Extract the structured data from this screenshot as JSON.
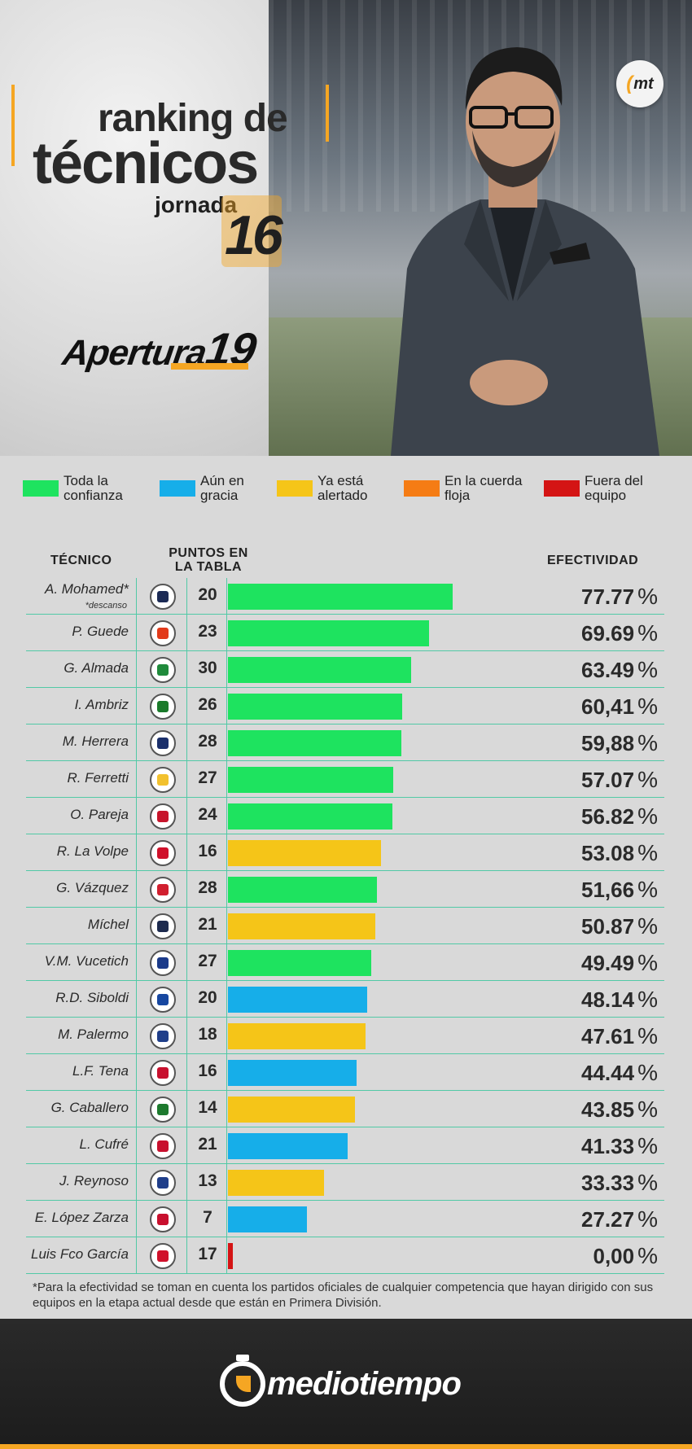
{
  "header": {
    "title_line1": "ranking de",
    "title_line2": "técnicos",
    "jornada_label": "jornada",
    "jornada_number": "16",
    "tournament_word": "Apertura",
    "tournament_year": "19",
    "logo_text": "mt"
  },
  "legend": [
    {
      "label": "Toda la confianza",
      "color": "#1ee35f"
    },
    {
      "label": "Aún en gracia",
      "color": "#16aee9"
    },
    {
      "label": "Ya está alertado",
      "color": "#f5c518"
    },
    {
      "label": "En la cuerda floja",
      "color": "#f57c14"
    },
    {
      "label": "Fuera del equipo",
      "color": "#d41414"
    }
  ],
  "columns": {
    "tecnico": "TÉCNICO",
    "puntos": "PUNTOS EN LA TABLA",
    "efectividad": "EFECTIVIDAD"
  },
  "chart_data": {
    "type": "bar",
    "orientation": "horizontal",
    "value_label": "EFECTIVIDAD",
    "xlim": [
      0,
      100
    ],
    "rows": [
      {
        "coach": "A. Mohamed*",
        "note": "*descanso",
        "points": "20",
        "value": 77.77,
        "display": "77.77",
        "status": "Toda la confianza",
        "crest_color": "#1b2a55"
      },
      {
        "coach": "P. Guede",
        "points": "23",
        "value": 69.69,
        "display": "69.69",
        "status": "Toda la confianza",
        "crest_color": "#e23a1a"
      },
      {
        "coach": "G. Almada",
        "points": "30",
        "value": 63.49,
        "display": "63.49",
        "status": "Toda la confianza",
        "crest_color": "#1f8a3b"
      },
      {
        "coach": "I. Ambriz",
        "points": "26",
        "value": 60.41,
        "display": "60,41",
        "status": "Toda la confianza",
        "crest_color": "#1a7a2a"
      },
      {
        "coach": "M. Herrera",
        "points": "28",
        "value": 59.88,
        "display": "59,88",
        "status": "Toda la confianza",
        "crest_color": "#1a2f6b"
      },
      {
        "coach": "R. Ferretti",
        "points": "27",
        "value": 57.07,
        "display": "57.07",
        "status": "Toda la confianza",
        "crest_color": "#f2c12e"
      },
      {
        "coach": "O. Pareja",
        "points": "24",
        "value": 56.82,
        "display": "56.82",
        "status": "Toda la confianza",
        "crest_color": "#c7142b"
      },
      {
        "coach": "R. La Volpe",
        "points": "16",
        "value": 53.08,
        "display": "53.08",
        "status": "Ya está alertado",
        "crest_color": "#d0112b"
      },
      {
        "coach": "G. Vázquez",
        "points": "28",
        "value": 51.66,
        "display": "51,66",
        "status": "Toda la confianza",
        "crest_color": "#d11f2f"
      },
      {
        "coach": "Míchel",
        "points": "21",
        "value": 50.87,
        "display": "50.87",
        "status": "Ya está alertado",
        "crest_color": "#1c2a4e"
      },
      {
        "coach": "V.M. Vucetich",
        "points": "27",
        "value": 49.49,
        "display": "49.49",
        "status": "Toda la confianza",
        "crest_color": "#1a3a8a"
      },
      {
        "coach": "R.D. Siboldi",
        "points": "20",
        "value": 48.14,
        "display": "48.14",
        "status": "Aún en gracia",
        "crest_color": "#1747a0"
      },
      {
        "coach": "M. Palermo",
        "points": "18",
        "value": 47.61,
        "display": "47.61",
        "status": "Ya está alertado",
        "crest_color": "#1f3e8a"
      },
      {
        "coach": "L.F. Tena",
        "points": "16",
        "value": 44.44,
        "display": "44.44",
        "status": "Aún en gracia",
        "crest_color": "#c8102e"
      },
      {
        "coach": "G. Caballero",
        "points": "14",
        "value": 43.85,
        "display": "43.85",
        "status": "Ya está alertado",
        "crest_color": "#1d7a2e"
      },
      {
        "coach": "L. Cufré",
        "points": "21",
        "value": 41.33,
        "display": "41.33",
        "status": "Aún en gracia",
        "crest_color": "#c8102e"
      },
      {
        "coach": "J. Reynoso",
        "points": "13",
        "value": 33.33,
        "display": "33.33",
        "status": "Ya está alertado",
        "crest_color": "#1f3e8a"
      },
      {
        "coach": "E. López Zarza",
        "points": "7",
        "value": 27.27,
        "display": "27.27",
        "status": "Aún en gracia",
        "crest_color": "#c8102e"
      },
      {
        "coach": "Luis Fco García",
        "points": "17",
        "value": 0.0,
        "display": "0,00",
        "status": "Fuera del equipo",
        "crest_color": "#d0112b"
      }
    ]
  },
  "percent_symbol": "%",
  "footnote": "*Para la efectividad se toman en cuenta los partidos oficiales de cualquier competencia que hayan dirigido con sus equipos en la etapa actual desde que están en Primera División.",
  "footer": {
    "brand": "mediotiempo"
  }
}
